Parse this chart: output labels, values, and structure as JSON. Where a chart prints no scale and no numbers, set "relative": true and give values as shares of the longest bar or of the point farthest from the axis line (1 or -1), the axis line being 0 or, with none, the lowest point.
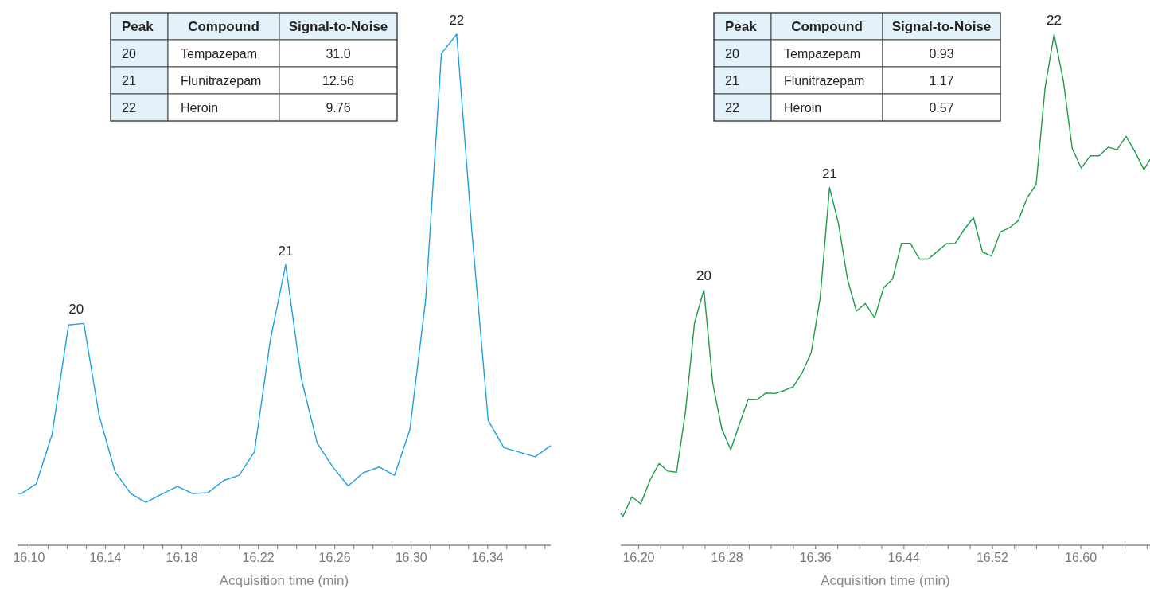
{
  "chart_data": [
    {
      "type": "line",
      "relative": true,
      "xlabel": "Acquisition time (min)",
      "xlim": [
        16.094,
        16.373
      ],
      "xticks": [
        {
          "value": 16.1,
          "label": "16.10"
        },
        {
          "value": 16.11,
          "label": null
        },
        {
          "value": 16.12,
          "label": null
        },
        {
          "value": 16.13,
          "label": null
        },
        {
          "value": 16.14,
          "label": "16.14"
        },
        {
          "value": 16.15,
          "label": null
        },
        {
          "value": 16.16,
          "label": null
        },
        {
          "value": 16.17,
          "label": null
        },
        {
          "value": 16.18,
          "label": "16.18"
        },
        {
          "value": 16.19,
          "label": null
        },
        {
          "value": 16.2,
          "label": null
        },
        {
          "value": 16.21,
          "label": null
        },
        {
          "value": 16.22,
          "label": "16.22"
        },
        {
          "value": 16.23,
          "label": null
        },
        {
          "value": 16.24,
          "label": null
        },
        {
          "value": 16.25,
          "label": null
        },
        {
          "value": 16.26,
          "label": "16.26"
        },
        {
          "value": 16.27,
          "label": null
        },
        {
          "value": 16.28,
          "label": null
        },
        {
          "value": 16.29,
          "label": null
        },
        {
          "value": 16.3,
          "label": "16.30"
        },
        {
          "value": 16.31,
          "label": null
        },
        {
          "value": 16.32,
          "label": null
        },
        {
          "value": 16.33,
          "label": null
        },
        {
          "value": 16.34,
          "label": "16.34"
        },
        {
          "value": 16.35,
          "label": null
        },
        {
          "value": 16.36,
          "label": null
        },
        {
          "value": 16.37,
          "label": null
        }
      ],
      "x": [
        16.0941,
        16.096,
        16.1038,
        16.1121,
        16.1207,
        16.1287,
        16.1367,
        16.145,
        16.1532,
        16.1612,
        16.1694,
        16.1777,
        16.1857,
        16.1937,
        16.202,
        16.21,
        16.218,
        16.2263,
        16.2343,
        16.2425,
        16.2508,
        16.2588,
        16.267,
        16.275,
        16.2833,
        16.2913,
        16.2993,
        16.3076,
        16.3158,
        16.3238,
        16.3319,
        16.3403,
        16.3485,
        16.3567,
        16.3648,
        16.373
      ],
      "series": [
        {
          "color": "#1ba1e2",
          "values": [
            0.101,
            0.101,
            0.12,
            0.217,
            0.431,
            0.434,
            0.254,
            0.144,
            0.101,
            0.084,
            0.1,
            0.115,
            0.101,
            0.103,
            0.127,
            0.137,
            0.183,
            0.402,
            0.549,
            0.326,
            0.2,
            0.154,
            0.116,
            0.142,
            0.153,
            0.137,
            0.226,
            0.482,
            0.962,
            1,
            0.607,
            0.244,
            0.191,
            0.182,
            0.173,
            0.195
          ]
        }
      ],
      "annotations": [
        {
          "text": "20",
          "x": 16.1247,
          "y": 0.434
        },
        {
          "text": "21",
          "x": 16.2343,
          "y": 0.549
        },
        {
          "text": "22",
          "x": 16.3238,
          "y": 1
        },
        "Peak",
        "Compound",
        "Signal-to-Noise",
        "20",
        "Tempazepam",
        "31.0",
        "21",
        "Flunitrazepam",
        "12.56",
        "22",
        "Heroin",
        "9.76"
      ]
    },
    {
      "type": "line",
      "relative": true,
      "xlabel": "Acquisition time (min)",
      "xlim": [
        16.1838,
        16.6626
      ],
      "xticks": [
        {
          "value": 16.2,
          "label": "16.20"
        },
        {
          "value": 16.22,
          "label": null
        },
        {
          "value": 16.24,
          "label": null
        },
        {
          "value": 16.26,
          "label": null
        },
        {
          "value": 16.28,
          "label": "16.28"
        },
        {
          "value": 16.3,
          "label": null
        },
        {
          "value": 16.32,
          "label": null
        },
        {
          "value": 16.34,
          "label": null
        },
        {
          "value": 16.36,
          "label": "16.36"
        },
        {
          "value": 16.38,
          "label": null
        },
        {
          "value": 16.4,
          "label": null
        },
        {
          "value": 16.42,
          "label": null
        },
        {
          "value": 16.44,
          "label": "16.44"
        },
        {
          "value": 16.46,
          "label": null
        },
        {
          "value": 16.48,
          "label": null
        },
        {
          "value": 16.5,
          "label": null
        },
        {
          "value": 16.52,
          "label": "16.52"
        },
        {
          "value": 16.54,
          "label": null
        },
        {
          "value": 16.56,
          "label": null
        },
        {
          "value": 16.58,
          "label": null
        },
        {
          "value": 16.6,
          "label": "16.60"
        },
        {
          "value": 16.62,
          "label": null
        },
        {
          "value": 16.64,
          "label": null
        },
        {
          "value": 16.66,
          "label": null
        }
      ],
      "x": [
        16.1838,
        16.1857,
        16.1938,
        16.2019,
        16.2104,
        16.2185,
        16.2262,
        16.2343,
        16.2424,
        16.2505,
        16.259,
        16.2671,
        16.2752,
        16.2833,
        16.291,
        16.2991,
        16.3072,
        16.3153,
        16.3234,
        16.3318,
        16.3399,
        16.348,
        16.3561,
        16.3642,
        16.3727,
        16.3808,
        16.3889,
        16.397,
        16.4051,
        16.4135,
        16.4216,
        16.4297,
        16.4378,
        16.4459,
        16.454,
        16.4621,
        16.4702,
        16.4783,
        16.4864,
        16.4945,
        16.5029,
        16.511,
        16.5191,
        16.5272,
        16.5353,
        16.5434,
        16.5515,
        16.5596,
        16.5677,
        16.5758,
        16.5842,
        16.5923,
        16.6004,
        16.6085,
        16.6166,
        16.6247,
        16.6328,
        16.6409,
        16.649,
        16.6571,
        16.6626
      ],
      "series": [
        {
          "color": "#1a9e48",
          "values": [
            0.063,
            0.056,
            0.095,
            0.081,
            0.128,
            0.16,
            0.145,
            0.143,
            0.262,
            0.435,
            0.5,
            0.316,
            0.228,
            0.187,
            0.236,
            0.286,
            0.285,
            0.298,
            0.297,
            0.303,
            0.31,
            0.338,
            0.377,
            0.484,
            0.7,
            0.629,
            0.521,
            0.458,
            0.473,
            0.445,
            0.504,
            0.521,
            0.591,
            0.591,
            0.56,
            0.56,
            0.575,
            0.59,
            0.591,
            0.618,
            0.641,
            0.574,
            0.566,
            0.613,
            0.621,
            0.635,
            0.68,
            0.706,
            0.896,
            1,
            0.909,
            0.776,
            0.738,
            0.762,
            0.762,
            0.779,
            0.774,
            0.8,
            0.77,
            0.735,
            0.755
          ]
        }
      ],
      "annotations": [
        {
          "text": "20",
          "x": 16.259,
          "y": 0.5
        },
        {
          "text": "21",
          "x": 16.3727,
          "y": 0.7
        },
        {
          "text": "22",
          "x": 16.5758,
          "y": 1
        },
        "Peak",
        "Compound",
        "Signal-to-Noise",
        "20",
        "Tempazepam",
        "0.93",
        "21",
        "Flunitrazepam",
        "1.17",
        "22",
        "Heroin",
        "0.57"
      ]
    }
  ]
}
